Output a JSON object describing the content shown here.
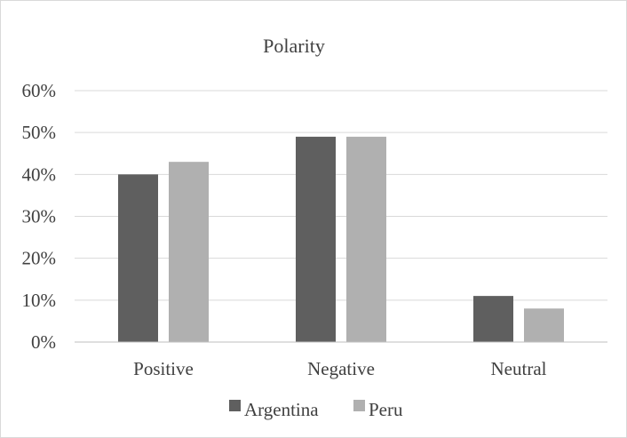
{
  "chart_data": {
    "type": "bar",
    "title": "Polarity",
    "categories": [
      "Positive",
      "Negative",
      "Neutral"
    ],
    "series": [
      {
        "name": "Argentina",
        "values": [
          0.4,
          0.49,
          0.11
        ],
        "color": "#5f5f5f"
      },
      {
        "name": "Peru",
        "values": [
          0.43,
          0.49,
          0.08
        ],
        "color": "#b0b0b0"
      }
    ],
    "ylim": [
      0,
      0.6
    ],
    "yticks": [
      "0%",
      "10%",
      "20%",
      "30%",
      "40%",
      "50%",
      "60%"
    ],
    "grid": true,
    "legend_position": "bottom"
  }
}
